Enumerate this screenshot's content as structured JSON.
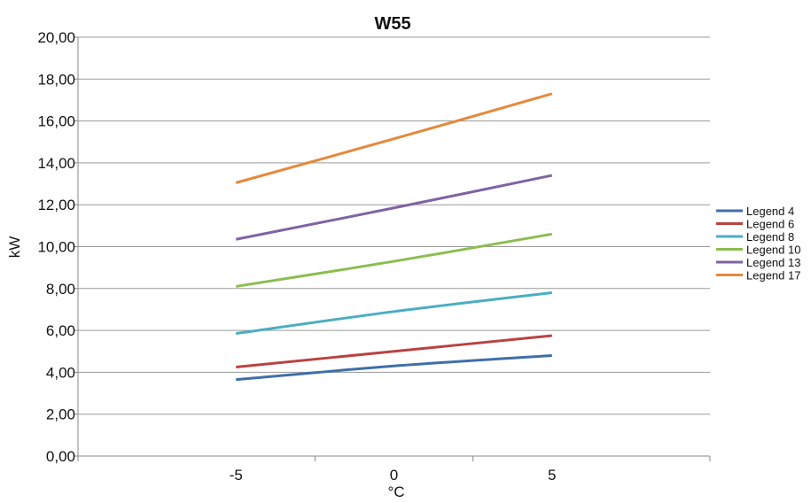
{
  "chart_data": {
    "type": "line",
    "title": "W55",
    "xlabel": "°C",
    "ylabel": "kW",
    "x": [
      -5,
      0,
      5
    ],
    "xlim": [
      -10,
      10
    ],
    "x_tick_values": [
      -5,
      0,
      5
    ],
    "x_tick_labels": [
      "-5",
      "0",
      "5"
    ],
    "ylim": [
      0,
      20
    ],
    "y_tick_values": [
      0,
      2,
      4,
      6,
      8,
      10,
      12,
      14,
      16,
      18,
      20
    ],
    "y_tick_labels": [
      "0,00",
      "2,00",
      "4,00",
      "6,00",
      "8,00",
      "10,00",
      "12,00",
      "14,00",
      "16,00",
      "18,00",
      "20,00"
    ],
    "grid": "horizontal",
    "legend_position": "right",
    "series": [
      {
        "name": "Legend 4",
        "color": "#3f6fa8",
        "values": [
          3.65,
          4.3,
          4.8
        ]
      },
      {
        "name": "Legend 6",
        "color": "#b84341",
        "values": [
          4.25,
          5.0,
          5.75
        ]
      },
      {
        "name": "Legend 8",
        "color": "#4aaec3",
        "values": [
          5.85,
          6.9,
          7.8
        ]
      },
      {
        "name": "Legend 10",
        "color": "#8bbd4f",
        "values": [
          8.1,
          9.3,
          10.6
        ]
      },
      {
        "name": "Legend 13",
        "color": "#8063a3",
        "values": [
          10.35,
          11.85,
          13.4
        ]
      },
      {
        "name": "Legend 17",
        "color": "#e5893c",
        "values": [
          13.05,
          15.15,
          17.3
        ]
      }
    ]
  }
}
